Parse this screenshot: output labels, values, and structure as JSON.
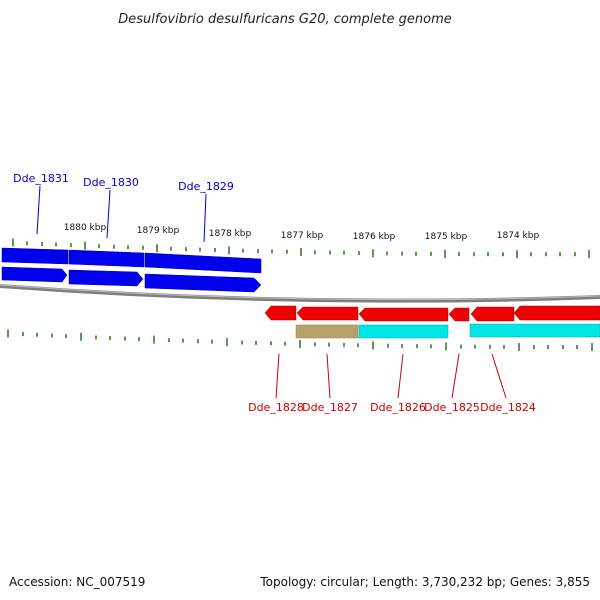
{
  "title": "Desulfovibrio desulfuricans G20, complete genome",
  "footer": {
    "accession": "Accession: NC_007519",
    "summary": "Topology: circular; Length: 3,730,232 bp; Genes: 3,855"
  },
  "colors": {
    "forward_gene": "#0000ee",
    "reverse_gene": "#ee0000",
    "forward_label": "#0000cc",
    "reverse_label": "#cc0000",
    "tick": "#1a7a1a",
    "backbone": "#808080",
    "cds_cyan": "#00e5e5",
    "cds_olive": "#b3a36a"
  },
  "kbp_labels": [
    "1880 kbp",
    "1879 kbp",
    "1878 kbp",
    "1877 kbp",
    "1876 kbp",
    "1875 kbp",
    "1874 kbp"
  ],
  "forward_genes": [
    {
      "label": "Dde_1831",
      "strand": "+"
    },
    {
      "label": "Dde_1830",
      "strand": "+"
    },
    {
      "label": "Dde_1829",
      "strand": "+"
    }
  ],
  "reverse_genes": [
    {
      "label": "Dde_1828",
      "strand": "-"
    },
    {
      "label": "Dde_1827",
      "strand": "-"
    },
    {
      "label": "Dde_1826",
      "strand": "-"
    },
    {
      "label": "Dde_1825",
      "strand": "-"
    },
    {
      "label": "Dde_1824",
      "strand": "-"
    }
  ]
}
